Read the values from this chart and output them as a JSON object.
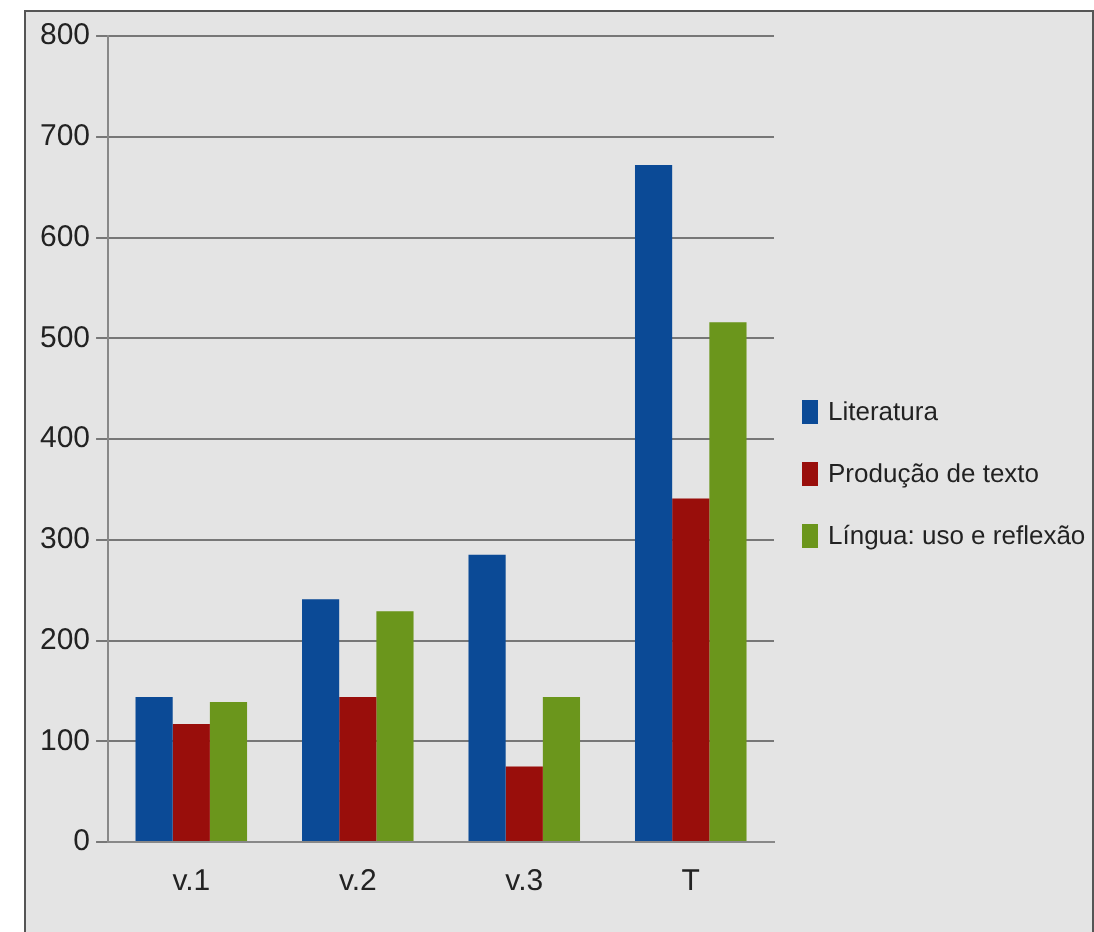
{
  "chart_data": {
    "type": "bar",
    "categories": [
      "v.1",
      "v.2",
      "v.3",
      "T"
    ],
    "series": [
      {
        "name": "Literatura",
        "color": "#0b4a96",
        "values": [
          144,
          241,
          285,
          672
        ]
      },
      {
        "name": "Produção de texto",
        "color": "#990e0b",
        "values": [
          117,
          144,
          75,
          341
        ]
      },
      {
        "name": "Língua: uso e reflexão",
        "color": "#6b961c",
        "values": [
          139,
          229,
          144,
          516
        ]
      }
    ],
    "ylim": [
      0,
      800
    ],
    "yticks": [
      0,
      100,
      200,
      300,
      400,
      500,
      600,
      700,
      800
    ],
    "grid": "y",
    "legend": "right"
  }
}
